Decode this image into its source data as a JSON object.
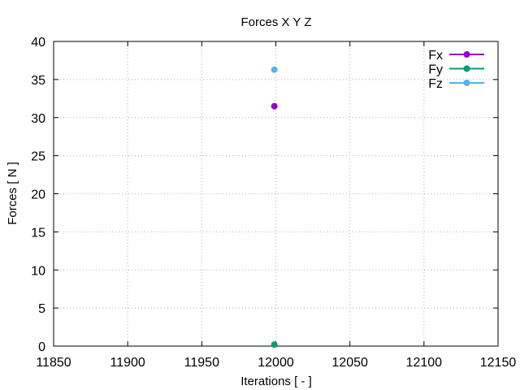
{
  "chart_data": {
    "type": "scatter",
    "title": "Forces X Y Z",
    "xlabel": "Iterations [ - ]",
    "ylabel": "Forces [ N ]",
    "xlim": [
      11850,
      12150
    ],
    "ylim": [
      0,
      40
    ],
    "xticks": [
      11850,
      11900,
      11950,
      12000,
      12050,
      12100,
      12150
    ],
    "yticks": [
      0,
      5,
      10,
      15,
      20,
      25,
      30,
      35,
      40
    ],
    "grid": true,
    "legend_position": "top-right",
    "series": [
      {
        "name": "Fx",
        "color": "#9400d3",
        "points": [
          {
            "x": 11999,
            "y": 31.5
          }
        ]
      },
      {
        "name": "Fy",
        "color": "#009e73",
        "points": [
          {
            "x": 11999,
            "y": 0.2
          }
        ]
      },
      {
        "name": "Fz",
        "color": "#56b4e9",
        "points": [
          {
            "x": 11999,
            "y": 36.3
          }
        ]
      }
    ]
  }
}
